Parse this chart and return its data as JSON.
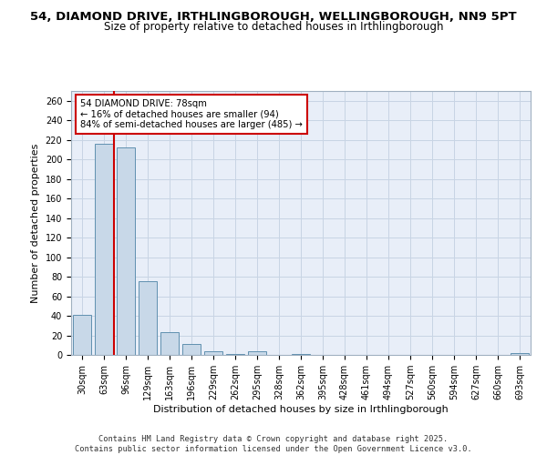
{
  "title_line1": "54, DIAMOND DRIVE, IRTHLINGBOROUGH, WELLINGBOROUGH, NN9 5PT",
  "title_line2": "Size of property relative to detached houses in Irthlingborough",
  "xlabel": "Distribution of detached houses by size in Irthlingborough",
  "ylabel": "Number of detached properties",
  "categories": [
    "30sqm",
    "63sqm",
    "96sqm",
    "129sqm",
    "163sqm",
    "196sqm",
    "229sqm",
    "262sqm",
    "295sqm",
    "328sqm",
    "362sqm",
    "395sqm",
    "428sqm",
    "461sqm",
    "494sqm",
    "527sqm",
    "560sqm",
    "594sqm",
    "627sqm",
    "660sqm",
    "693sqm"
  ],
  "values": [
    41,
    216,
    212,
    75,
    23,
    11,
    4,
    1,
    4,
    0,
    1,
    0,
    0,
    0,
    0,
    0,
    0,
    0,
    0,
    0,
    2
  ],
  "bar_color": "#c8d8e8",
  "bar_edge_color": "#6090b0",
  "red_line_x": 1.47,
  "annotation_text": "54 DIAMOND DRIVE: 78sqm\n← 16% of detached houses are smaller (94)\n84% of semi-detached houses are larger (485) →",
  "annotation_box_color": "#ffffff",
  "annotation_box_edge": "#cc0000",
  "red_line_color": "#cc0000",
  "ylim": [
    0,
    270
  ],
  "yticks": [
    0,
    20,
    40,
    60,
    80,
    100,
    120,
    140,
    160,
    180,
    200,
    220,
    240,
    260
  ],
  "grid_color": "#c8d4e4",
  "bg_color": "#e8eef8",
  "footer": "Contains HM Land Registry data © Crown copyright and database right 2025.\nContains public sector information licensed under the Open Government Licence v3.0.",
  "title_fontsize": 9.5,
  "subtitle_fontsize": 8.5,
  "tick_fontsize": 7,
  "label_fontsize": 8
}
